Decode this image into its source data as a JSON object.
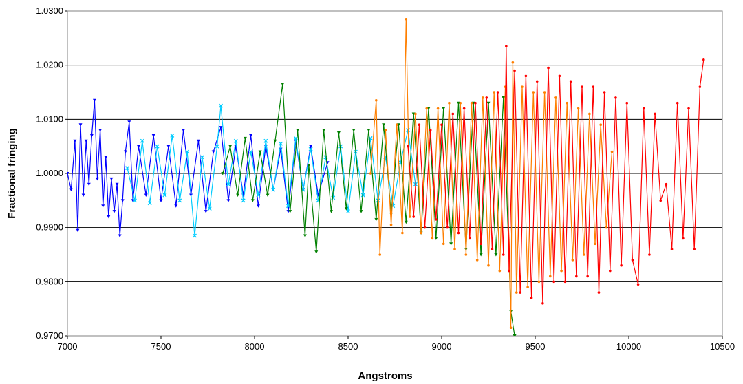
{
  "chart_data": {
    "type": "line",
    "title": "",
    "xlabel": "Angstroms",
    "ylabel": "Fractional fringing",
    "xlim": [
      7000,
      10500
    ],
    "ylim": [
      0.97,
      1.03
    ],
    "x_ticks": [
      "7000",
      "7500",
      "8000",
      "8500",
      "9000",
      "9500",
      "10000",
      "10500"
    ],
    "y_ticks": [
      "0.9700",
      "0.9800",
      "0.9900",
      "1.0000",
      "1.0100",
      "1.0200",
      "1.0300"
    ],
    "grid": "horizontal",
    "legend": "none",
    "series": [
      {
        "color": "#0000ff",
        "marker": "triangle",
        "x": [
          7000,
          7020,
          7040,
          7055,
          7070,
          7085,
          7100,
          7115,
          7130,
          7145,
          7160,
          7175,
          7190,
          7205,
          7220,
          7235,
          7250,
          7265,
          7280,
          7295,
          7310,
          7330,
          7350,
          7380,
          7420,
          7460,
          7500,
          7540,
          7580,
          7620,
          7660,
          7700,
          7740,
          7780,
          7820,
          7860,
          7900,
          7940,
          7980,
          8020,
          8060,
          8100,
          8140,
          8180,
          8220,
          8260,
          8300,
          8340,
          8390
        ],
        "y": [
          1.0,
          0.997,
          1.006,
          0.9895,
          1.009,
          0.996,
          1.006,
          0.998,
          1.007,
          1.0135,
          0.999,
          1.008,
          0.994,
          1.003,
          0.992,
          0.999,
          0.993,
          0.998,
          0.9885,
          0.995,
          1.004,
          1.0095,
          0.995,
          1.005,
          0.996,
          1.007,
          0.995,
          1.005,
          0.994,
          1.008,
          0.996,
          1.006,
          0.993,
          1.004,
          1.0085,
          0.995,
          1.005,
          0.996,
          1.007,
          0.994,
          1.005,
          0.997,
          1.0045,
          0.993,
          1.006,
          0.997,
          1.005,
          0.996,
          1.002
        ]
      },
      {
        "color": "#00ccff",
        "marker": "star",
        "x": [
          7320,
          7360,
          7400,
          7440,
          7480,
          7520,
          7560,
          7600,
          7640,
          7680,
          7720,
          7760,
          7800,
          7820,
          7860,
          7900,
          7940,
          7980,
          8020,
          8060,
          8100,
          8140,
          8180,
          8220,
          8260,
          8300,
          8340,
          8380,
          8420,
          8460,
          8500,
          8540,
          8580,
          8620,
          8660,
          8700,
          8740,
          8780,
          8820,
          8860
        ],
        "y": [
          1.001,
          0.995,
          1.006,
          0.9945,
          1.005,
          0.996,
          1.007,
          0.995,
          1.004,
          0.9885,
          1.003,
          0.9935,
          1.005,
          1.0125,
          0.998,
          1.006,
          0.995,
          1.004,
          0.996,
          1.006,
          0.997,
          1.0055,
          0.994,
          1.0065,
          0.997,
          1.0045,
          0.995,
          1.003,
          0.9955,
          1.005,
          0.993,
          1.004,
          0.996,
          1.0065,
          0.995,
          1.003,
          0.994,
          1.002,
          1.008,
          0.998
        ]
      },
      {
        "color": "#008000",
        "marker": "triangle",
        "x": [
          7830,
          7870,
          7910,
          7950,
          7990,
          8030,
          8070,
          8110,
          8150,
          8190,
          8230,
          8270,
          8290,
          8330,
          8370,
          8410,
          8450,
          8490,
          8530,
          8570,
          8610,
          8650,
          8690,
          8730,
          8770,
          8810,
          8850,
          8890,
          8930,
          8970,
          9010,
          9050,
          9090,
          9130,
          9170,
          9210,
          9250,
          9290,
          9330,
          9370,
          9390
        ],
        "y": [
          1.0,
          1.005,
          0.996,
          1.0065,
          0.995,
          1.004,
          0.996,
          1.006,
          1.0165,
          0.993,
          1.008,
          0.9885,
          1.0015,
          0.9855,
          1.008,
          0.993,
          1.0075,
          0.9935,
          1.008,
          0.993,
          1.008,
          0.9915,
          1.009,
          0.9925,
          1.009,
          0.991,
          1.011,
          0.989,
          1.012,
          0.988,
          1.012,
          0.987,
          1.013,
          0.986,
          1.013,
          0.985,
          1.013,
          0.985,
          1.014,
          0.9745,
          0.97
        ]
      },
      {
        "color": "#ff7f00",
        "marker": "circle",
        "x": [
          8620,
          8650,
          8670,
          8700,
          8730,
          8760,
          8790,
          8810,
          8830,
          8860,
          8890,
          8920,
          8950,
          8980,
          9010,
          9040,
          9070,
          9100,
          9130,
          9160,
          9190,
          9220,
          9250,
          9280,
          9310,
          9340,
          9370,
          9380,
          9400,
          9430,
          9460,
          9490,
          9520,
          9550,
          9580,
          9610,
          9640,
          9670,
          9700,
          9730,
          9760,
          9790,
          9820,
          9850,
          9880,
          9910
        ],
        "y": [
          1.0,
          1.0135,
          0.985,
          1.008,
          0.9905,
          1.009,
          0.989,
          1.0285,
          0.992,
          1.011,
          0.989,
          1.012,
          0.988,
          1.012,
          0.987,
          1.013,
          0.986,
          1.013,
          0.985,
          1.013,
          0.984,
          1.014,
          0.983,
          1.015,
          0.982,
          1.016,
          0.9715,
          1.0205,
          0.978,
          1.016,
          0.979,
          1.015,
          0.98,
          1.015,
          0.981,
          1.014,
          0.982,
          1.013,
          0.984,
          1.012,
          0.985,
          1.011,
          0.987,
          1.009,
          0.99,
          1.004
        ]
      },
      {
        "color": "#ff0000",
        "marker": "circle",
        "x": [
          8820,
          8850,
          8880,
          8910,
          8940,
          8970,
          9000,
          9030,
          9060,
          9090,
          9120,
          9150,
          9180,
          9210,
          9240,
          9270,
          9300,
          9330,
          9345,
          9360,
          9390,
          9420,
          9450,
          9480,
          9510,
          9540,
          9570,
          9600,
          9630,
          9660,
          9690,
          9720,
          9750,
          9780,
          9810,
          9840,
          9870,
          9900,
          9930,
          9960,
          9990,
          10020,
          10050,
          10080,
          10110,
          10140,
          10170,
          10200,
          10230,
          10260,
          10290,
          10320,
          10350,
          10380,
          10400
        ],
        "y": [
          1.005,
          0.992,
          1.009,
          0.99,
          1.008,
          0.9915,
          1.009,
          0.99,
          1.011,
          0.989,
          1.012,
          0.988,
          1.013,
          0.987,
          1.014,
          0.986,
          1.015,
          0.985,
          1.0235,
          0.982,
          1.019,
          0.978,
          1.018,
          0.977,
          1.017,
          0.976,
          1.0195,
          0.98,
          1.018,
          0.98,
          1.017,
          0.981,
          1.016,
          0.981,
          1.016,
          0.978,
          1.015,
          0.982,
          1.014,
          0.983,
          1.013,
          0.984,
          0.9795,
          1.012,
          0.985,
          1.011,
          0.995,
          0.998,
          0.986,
          1.013,
          0.988,
          1.012,
          0.986,
          1.016,
          1.021
        ]
      }
    ]
  }
}
